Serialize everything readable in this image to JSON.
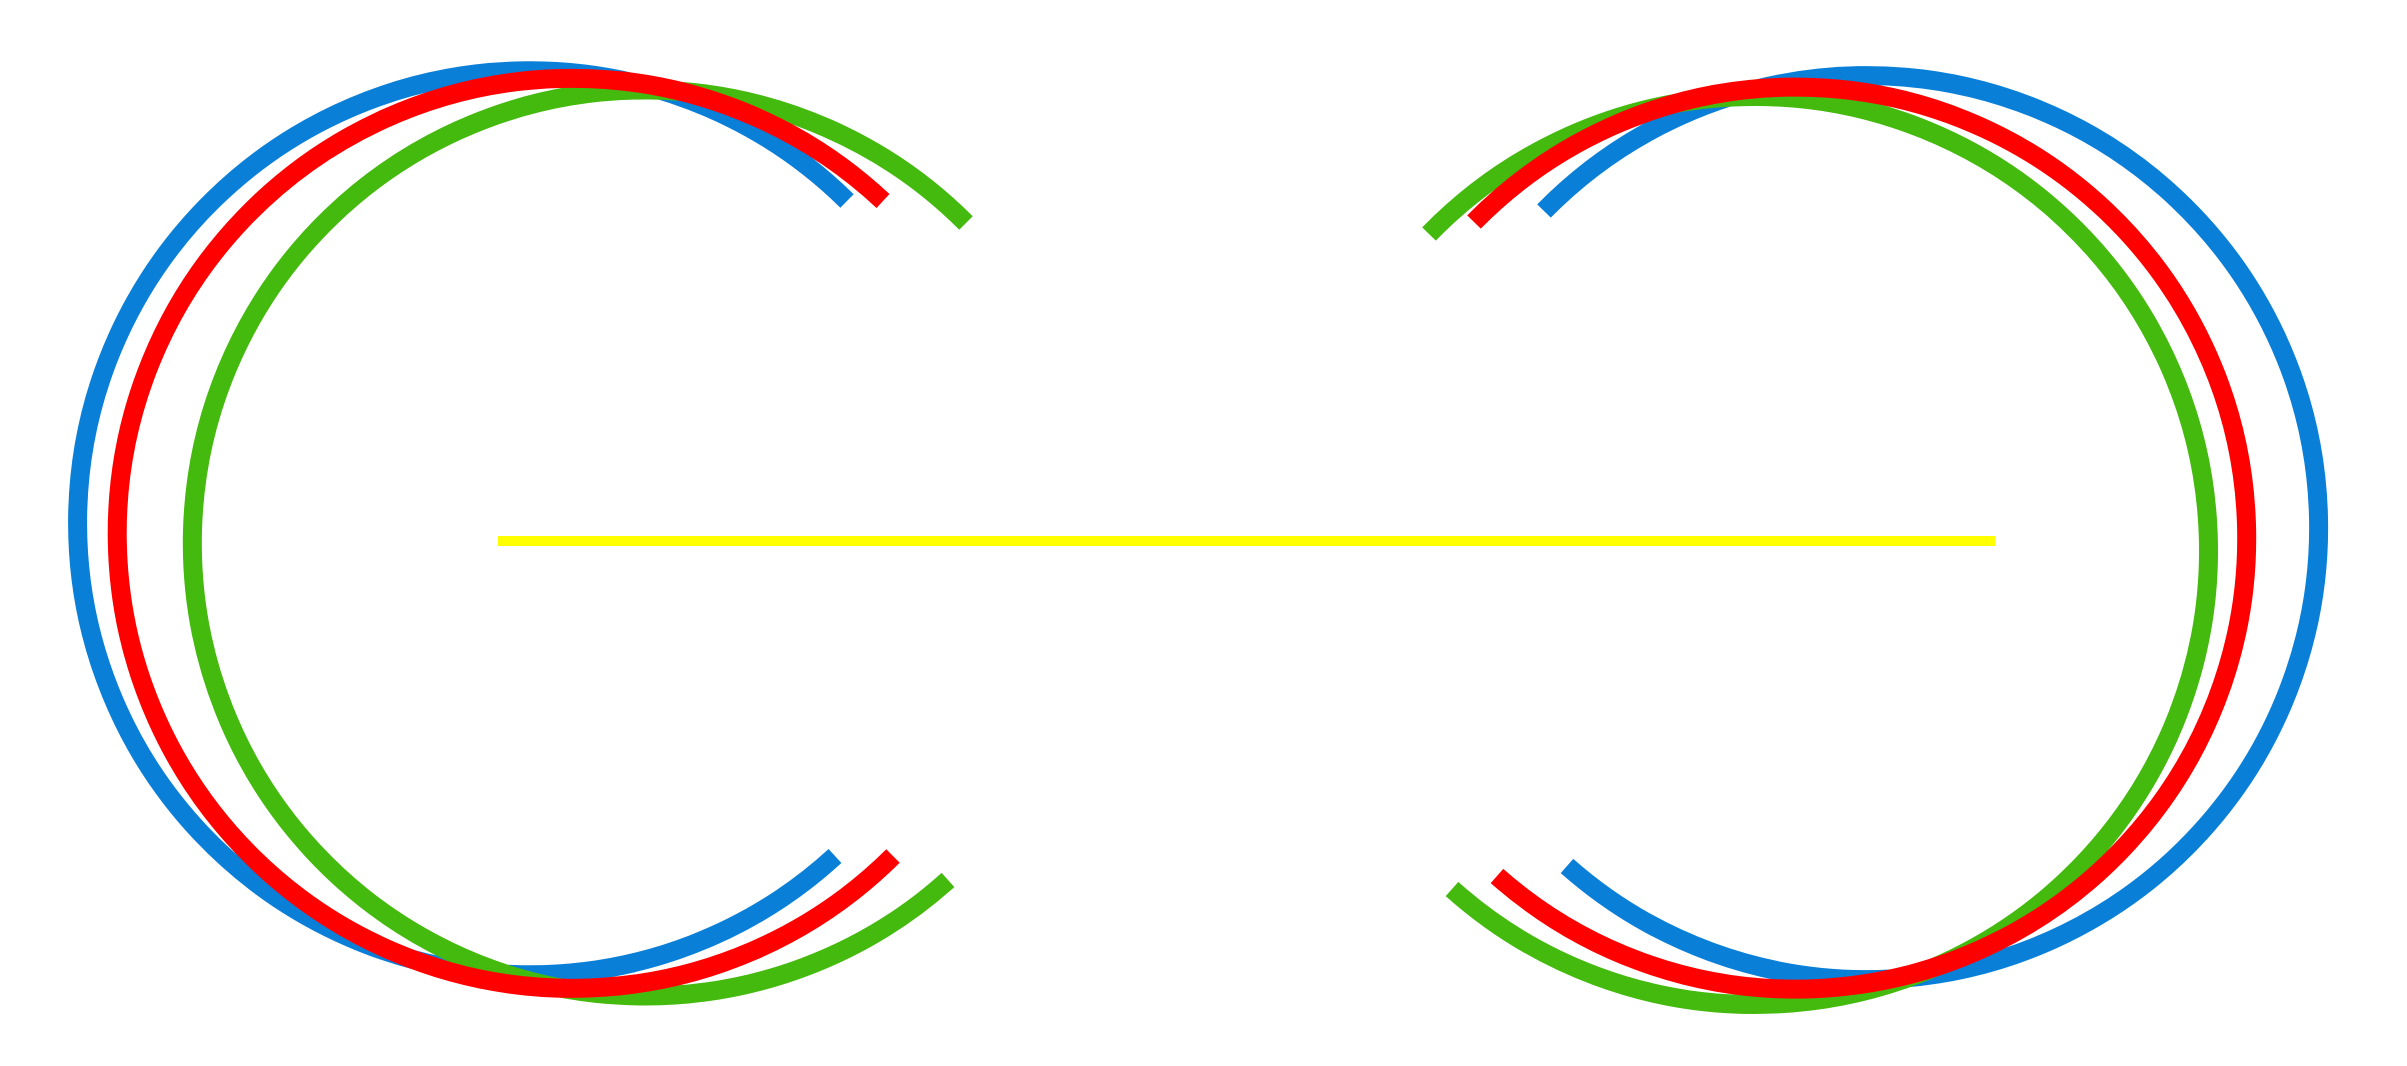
{
  "colors": {
    "background": "#ffffff",
    "blue": "#0a7fd8",
    "green": "#44b90e",
    "red": "#ff0000",
    "yellow": "#ffff00"
  },
  "arcs": {
    "left": [
      {
        "name": "left-blue-arc",
        "color": "blue"
      },
      {
        "name": "left-green-arc",
        "color": "green"
      },
      {
        "name": "left-red-arc",
        "color": "red"
      }
    ],
    "right": [
      {
        "name": "right-blue-arc",
        "color": "blue"
      },
      {
        "name": "right-green-arc",
        "color": "green"
      },
      {
        "name": "right-red-arc",
        "color": "red"
      }
    ]
  },
  "bar": {
    "name": "yellow-bar",
    "color": "yellow"
  }
}
